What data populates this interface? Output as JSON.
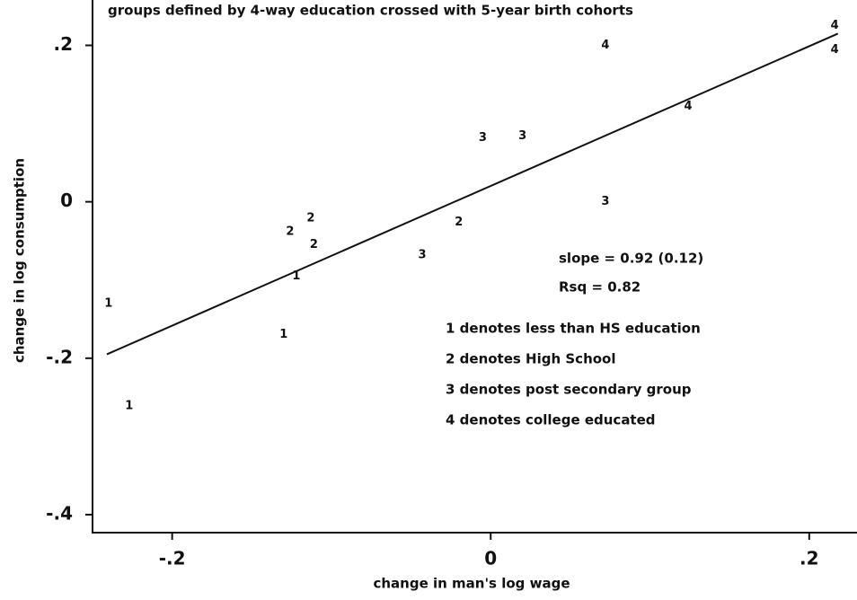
{
  "chart_data": {
    "type": "scatter",
    "title": "groups defined by 4-way education crossed with 5-year birth cohorts",
    "x_label": "change in man's log wage",
    "y_label": "change in log consumption",
    "xlim": [
      -0.25,
      0.23
    ],
    "ylim": [
      -0.423,
      0.258
    ],
    "xticks": [
      {
        "value": -0.2,
        "label": "-.2"
      },
      0,
      {
        "value": 0.2,
        "label": ".2"
      }
    ],
    "yticks": [
      {
        "value": -0.4,
        "label": "-.4"
      },
      {
        "value": -0.2,
        "label": "-.2"
      },
      0,
      {
        "value": 0.2,
        "label": ".2"
      }
    ],
    "series": [
      {
        "name": "1 denotes less than HS education",
        "marker": "1",
        "x": [
          -0.24,
          -0.227,
          -0.13,
          -0.122
        ],
        "y": [
          -0.13,
          -0.261,
          -0.17,
          -0.095
        ]
      },
      {
        "name": "2 denotes High School",
        "marker": "2",
        "x": [
          -0.126,
          -0.113,
          -0.111,
          -0.02
        ],
        "y": [
          -0.038,
          -0.021,
          -0.055,
          -0.026
        ]
      },
      {
        "name": "3 denotes post secondary group",
        "marker": "3",
        "x": [
          -0.043,
          -0.005,
          0.02,
          0.072
        ],
        "y": [
          -0.068,
          0.082,
          0.084,
          0.0
        ]
      },
      {
        "name": "4 denotes college educated",
        "marker": "4",
        "x": [
          0.072,
          0.124,
          0.216,
          0.216
        ],
        "y": [
          0.2,
          0.122,
          0.225,
          0.194
        ]
      }
    ],
    "fit_line": {
      "x": [
        -0.241,
        0.218
      ],
      "y": [
        -0.195,
        0.215
      ]
    },
    "annotations": [
      "slope = 0.92 (0.12)",
      "Rsq = 0.82"
    ]
  }
}
